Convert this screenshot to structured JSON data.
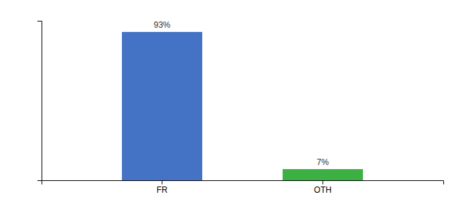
{
  "chart_data": {
    "type": "bar",
    "categories": [
      "FR",
      "OTH"
    ],
    "values": [
      93,
      7
    ],
    "value_labels": [
      "93%",
      "7%"
    ],
    "colors": [
      "#4472C4",
      "#3CB043"
    ],
    "ylim": [
      0,
      100
    ],
    "yticks": [],
    "data_labels": true,
    "tick_labels": "x",
    "grid": false
  }
}
